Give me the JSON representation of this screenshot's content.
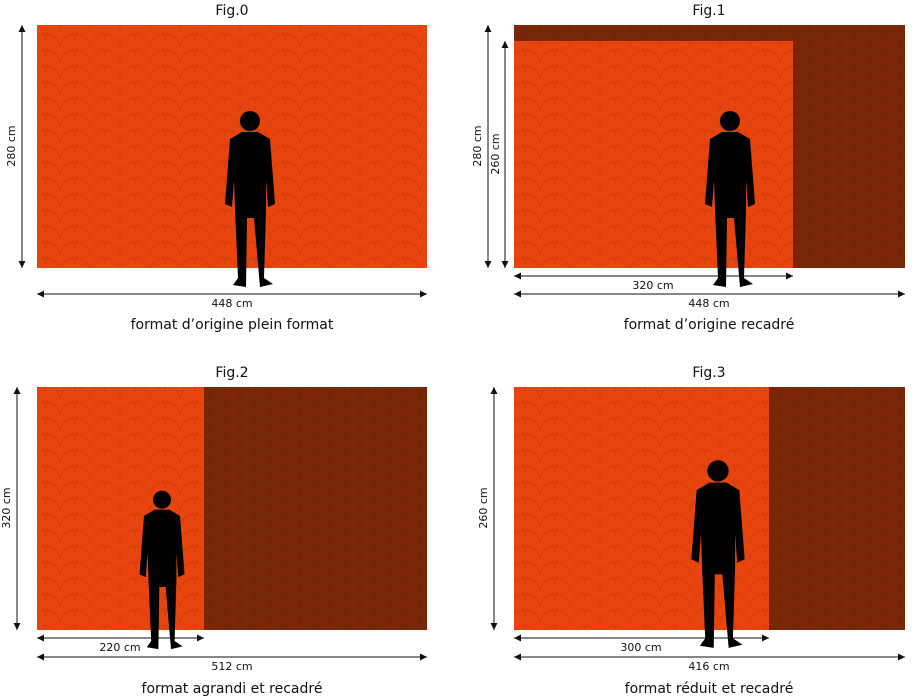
{
  "figures": [
    {
      "title": "Fig.0",
      "caption": "format d’origine plein format",
      "height_labels": [
        "280 cm"
      ],
      "width_labels": [
        "448 cm"
      ]
    },
    {
      "title": "Fig.1",
      "caption": "format d’origine recadré",
      "height_labels": [
        "280 cm",
        "260 cm"
      ],
      "width_labels": [
        "320 cm",
        "448 cm"
      ]
    },
    {
      "title": "Fig.2",
      "caption": "format agrandi et recadré",
      "height_labels": [
        "320 cm"
      ],
      "width_labels": [
        "220 cm",
        "512 cm"
      ]
    },
    {
      "title": "Fig.3",
      "caption": "format réduit et recadré",
      "height_labels": [
        "260 cm"
      ],
      "width_labels": [
        "300 cm",
        "416 cm"
      ]
    }
  ]
}
